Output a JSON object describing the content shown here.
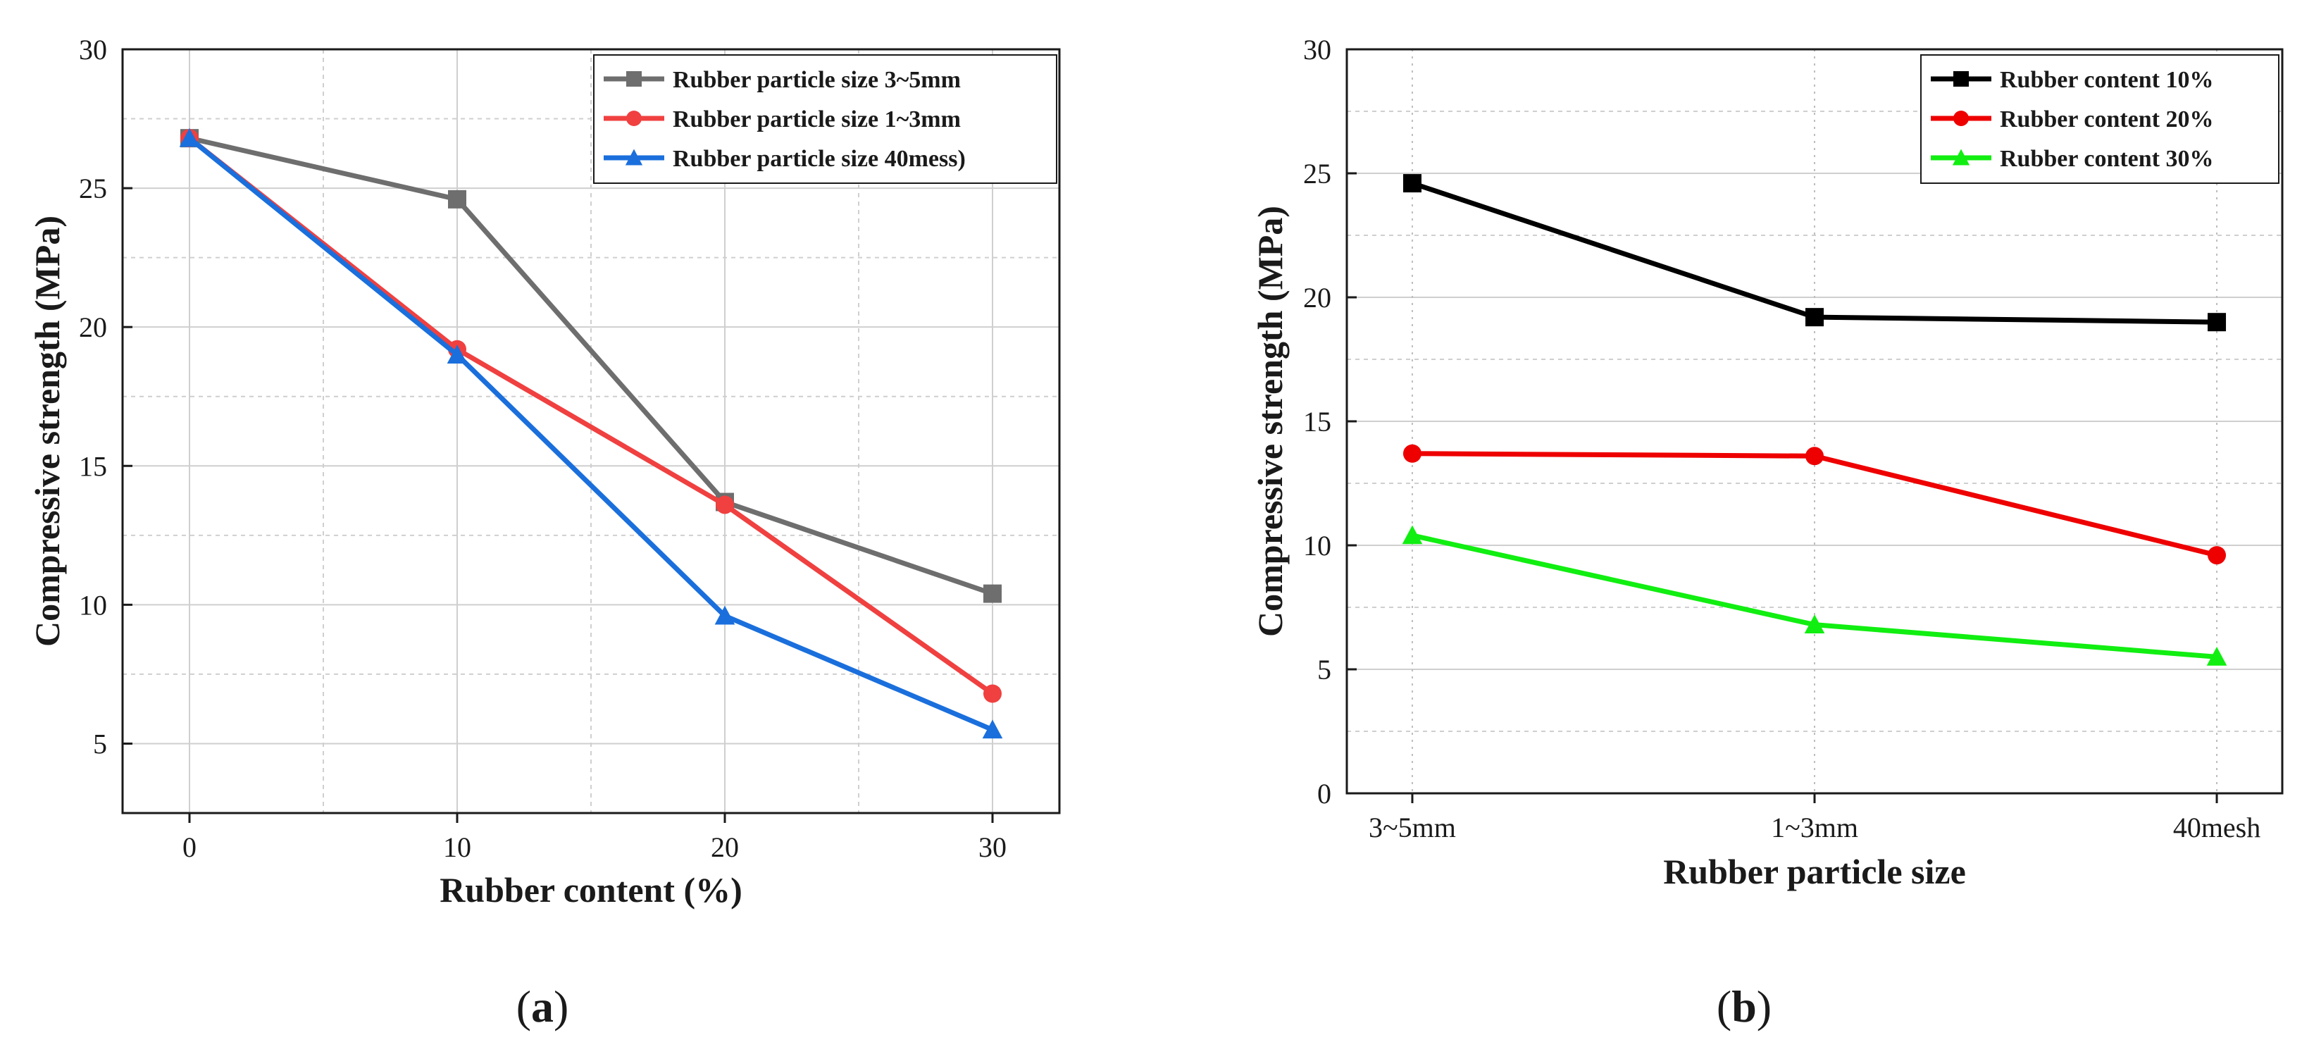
{
  "chart_data": [
    {
      "type": "line",
      "panel_label": "a",
      "xlabel": "Rubber content (%)",
      "ylabel": "Compressive strength (MPa)",
      "xlim": [
        -2.5,
        32.5
      ],
      "ylim": [
        2.5,
        30
      ],
      "x_ticks": [
        0,
        10,
        20,
        30
      ],
      "y_ticks": [
        5,
        10,
        15,
        20,
        25,
        30
      ],
      "x_tick_labels": [
        "0",
        "10",
        "20",
        "30"
      ],
      "y_tick_labels": [
        "5",
        "10",
        "15",
        "20",
        "25",
        "30"
      ],
      "grid": true,
      "legend_position": "top-right",
      "x": [
        0,
        10,
        20,
        30
      ],
      "series": [
        {
          "name": "Rubber particle size 3~5mm",
          "values": [
            26.8,
            24.6,
            13.7,
            10.4
          ],
          "color": "#6e6e6e",
          "marker": "square"
        },
        {
          "name": "Rubber particle size 1~3mm",
          "values": [
            26.8,
            19.2,
            13.6,
            6.8
          ],
          "color": "#f04040",
          "marker": "circle"
        },
        {
          "name": "Rubber particle size 40mess)",
          "values": [
            26.8,
            19.0,
            9.6,
            5.5
          ],
          "color": "#1a6fdc",
          "marker": "triangle"
        }
      ]
    },
    {
      "type": "line",
      "panel_label": "b",
      "xlabel": "Rubber particle size",
      "ylabel": "Compressive strength (MPa)",
      "ylim": [
        0,
        30
      ],
      "y_ticks": [
        0,
        5,
        10,
        15,
        20,
        25,
        30
      ],
      "y_tick_labels": [
        "0",
        "5",
        "10",
        "15",
        "20",
        "25",
        "30"
      ],
      "categories": [
        "3~5mm",
        "1~3mm",
        "40mesh"
      ],
      "grid": true,
      "legend_position": "top-right",
      "series": [
        {
          "name": "Rubber content 10%",
          "values": [
            24.6,
            19.2,
            19.0
          ],
          "color": "#000000",
          "marker": "square"
        },
        {
          "name": "Rubber content 20%",
          "values": [
            13.7,
            13.6,
            9.6
          ],
          "color": "#ee0000",
          "marker": "circle"
        },
        {
          "name": "Rubber content 30%",
          "values": [
            10.4,
            6.8,
            5.5
          ],
          "color": "#11ee11",
          "marker": "triangle"
        }
      ]
    }
  ]
}
